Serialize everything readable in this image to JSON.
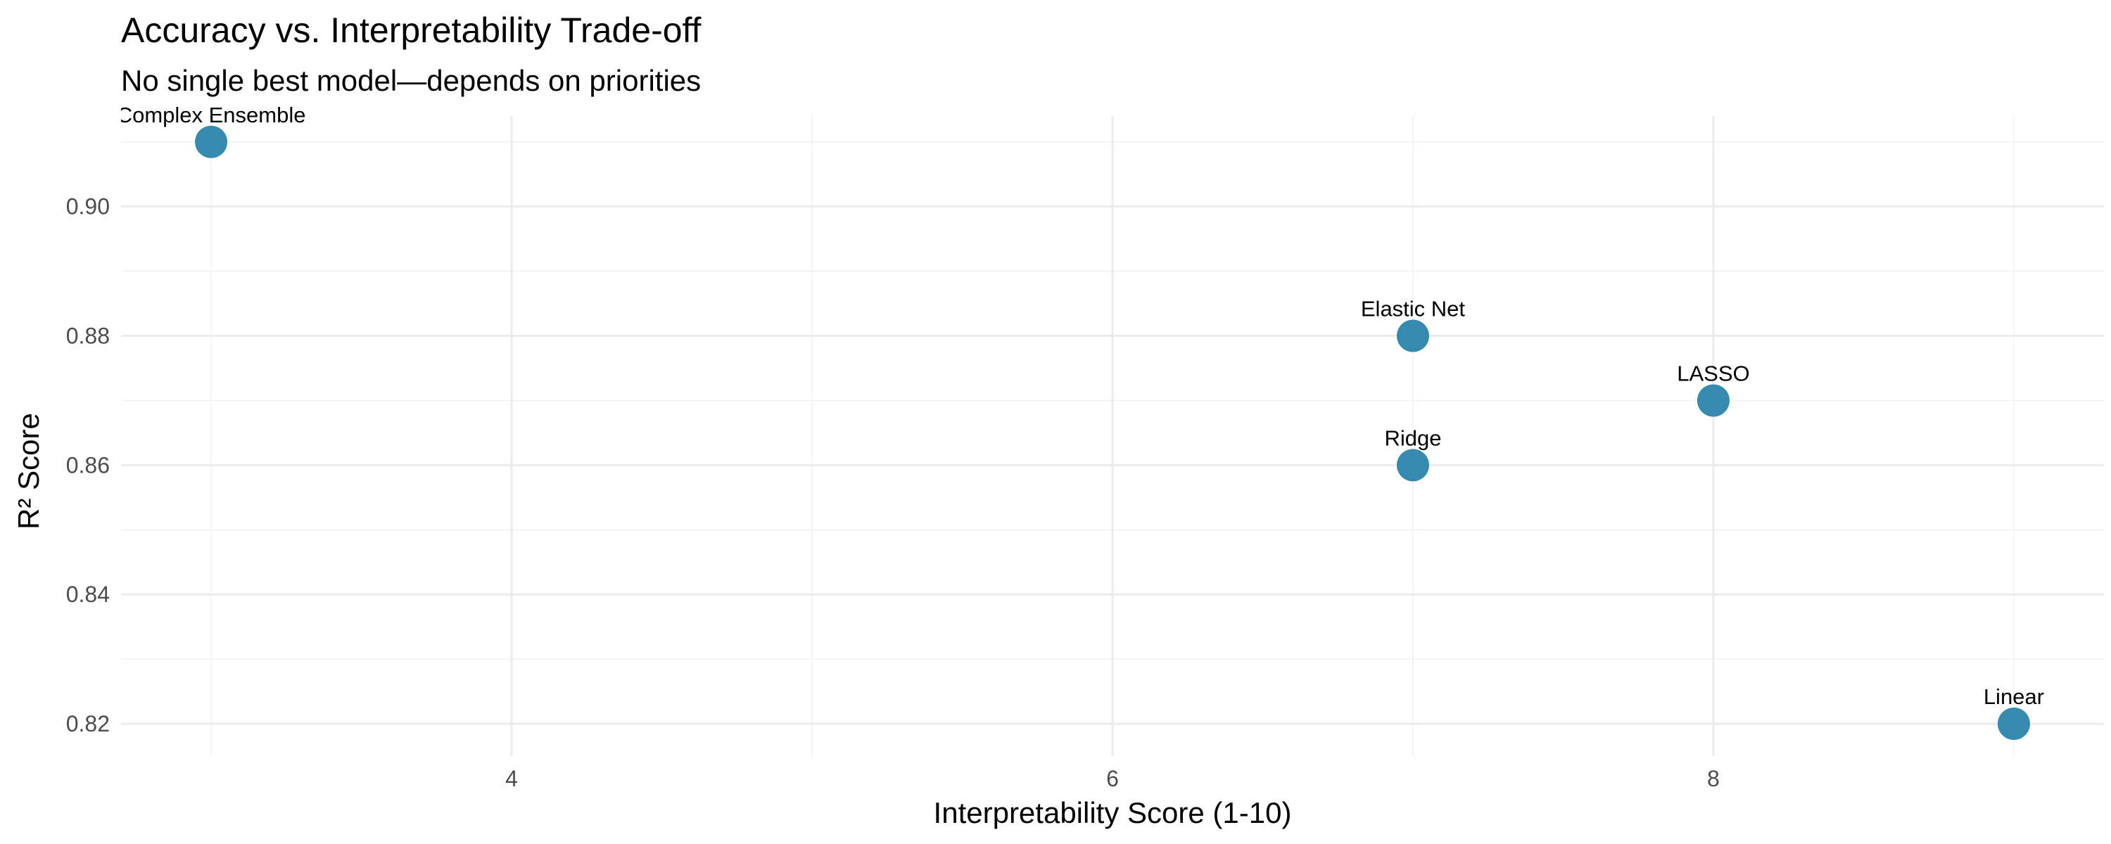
{
  "chart_data": {
    "type": "scatter",
    "title": "Accuracy vs. Interpretability Trade-off",
    "subtitle": "No single best model—depends on priorities",
    "xlabel": "Interpretability Score (1-10)",
    "ylabel": "R² Score",
    "xlim": [
      2.7,
      9.3
    ],
    "ylim": [
      0.815,
      0.914
    ],
    "x_ticks": [
      4,
      6,
      8
    ],
    "x_tick_labels": [
      "4",
      "6",
      "8"
    ],
    "y_ticks": [
      0.82,
      0.84,
      0.86,
      0.88,
      0.9
    ],
    "y_tick_labels": [
      "0.82",
      "0.84",
      "0.86",
      "0.88",
      "0.90"
    ],
    "grid": true,
    "point_color": "#2e86ab",
    "points": [
      {
        "label": "Complex Ensemble",
        "x": 3,
        "y": 0.91
      },
      {
        "label": "Elastic Net",
        "x": 7,
        "y": 0.88
      },
      {
        "label": "LASSO",
        "x": 8,
        "y": 0.87
      },
      {
        "label": "Ridge",
        "x": 7,
        "y": 0.86
      },
      {
        "label": "Linear",
        "x": 9,
        "y": 0.82
      }
    ]
  }
}
